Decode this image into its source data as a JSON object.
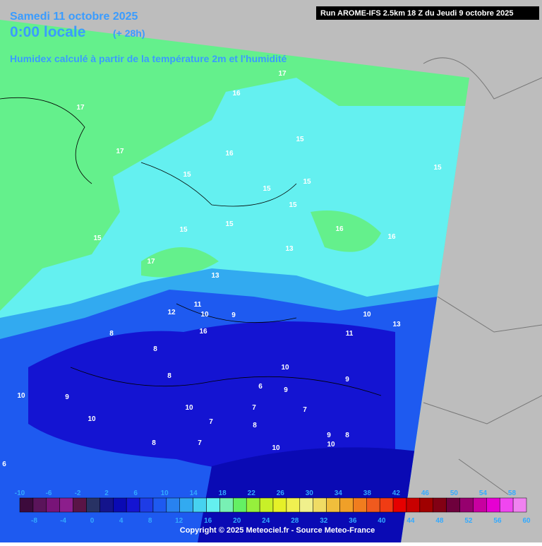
{
  "header": {
    "date": "Samedi 11 octobre 2025",
    "time": "0:00 locale",
    "offset": "(+ 28h)",
    "subtitle": "Humidex calculé à partir de la température 2m et l'humidité",
    "run": "Run AROME-IFS 2.5km 18 Z du Jeudi 9 octobre 2025"
  },
  "map": {
    "contour_labels": [
      "17",
      "16",
      "15",
      "17",
      "17",
      "16",
      "15",
      "15",
      "15",
      "15",
      "15",
      "15",
      "15",
      "16",
      "16",
      "17",
      "15",
      "13",
      "13",
      "12",
      "11",
      "10",
      "9",
      "10",
      "13",
      "11",
      "8",
      "8",
      "16",
      "8",
      "10",
      "10",
      "9",
      "7",
      "6",
      "9",
      "9",
      "10",
      "7",
      "7",
      "8",
      "8",
      "7",
      "10",
      "10",
      "9",
      "10",
      "6",
      "8"
    ]
  },
  "legend": {
    "colors": [
      "#3c0a3c",
      "#5a145a",
      "#781478",
      "#8c1e8c",
      "#5a1446",
      "#283264",
      "#14148c",
      "#0a0ab4",
      "#1414d2",
      "#1e3ce6",
      "#1e5af0",
      "#2882f0",
      "#32aaf0",
      "#46d2f0",
      "#64f0f0",
      "#78f0b4",
      "#64f064",
      "#96f03c",
      "#c8f028",
      "#e6f028",
      "#f0f050",
      "#f0f08c",
      "#f0dc64",
      "#f0be3c",
      "#f0a028",
      "#f07d1e",
      "#f05a1e",
      "#f03c14",
      "#e60000",
      "#c80000",
      "#a00000",
      "#820014",
      "#6e003c",
      "#96006e",
      "#c800a0",
      "#e600d2",
      "#f046f0",
      "#f082f0"
    ],
    "top_labels": [
      "-10",
      "-6",
      "-2",
      "2",
      "6",
      "10",
      "14",
      "18",
      "22",
      "26",
      "30",
      "34",
      "38",
      "42",
      "46",
      "50",
      "54",
      "58"
    ],
    "bottom_labels": [
      "-8",
      "-4",
      "0",
      "4",
      "8",
      "12",
      "16",
      "20",
      "24",
      "28",
      "32",
      "36",
      "40",
      "44",
      "48",
      "52",
      "56",
      "60"
    ]
  },
  "footer": {
    "copyright": "Copyright © 2025 Meteociel.fr - Source Meteo-France"
  }
}
